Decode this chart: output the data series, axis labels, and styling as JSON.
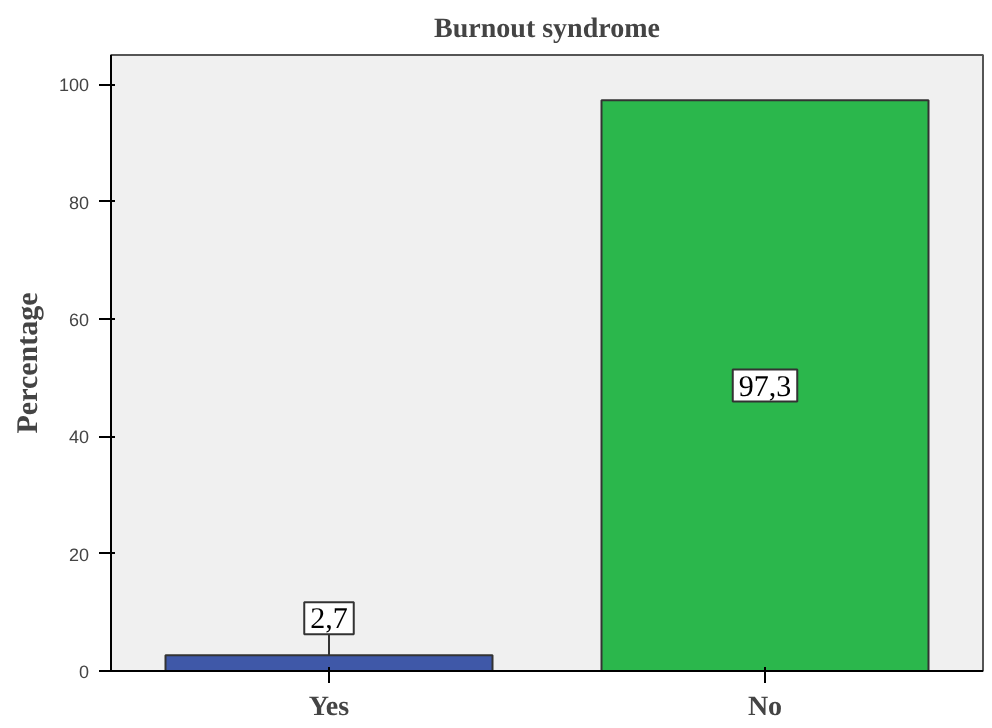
{
  "chart_data": {
    "type": "bar",
    "title": "Burnout syndrome",
    "ylabel": "Percentage",
    "categories": [
      "Yes",
      "No"
    ],
    "values": [
      2.7,
      97.3
    ],
    "colors": [
      "#3f58a8",
      "#2bb74c"
    ],
    "value_labels": [
      "2,7",
      "97,3"
    ],
    "ylim": [
      0,
      105
    ],
    "yticks": [
      0,
      20,
      40,
      60,
      80,
      100
    ],
    "grid": false
  }
}
